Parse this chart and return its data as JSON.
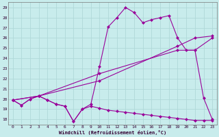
{
  "xlabel": "Windchill (Refroidissement éolien,°C)",
  "bg_color": "#c8ecec",
  "grid_color": "#b0d8d8",
  "line_color": "#990099",
  "xlim": [
    -0.5,
    23.5
  ],
  "ylim": [
    17.5,
    29.5
  ],
  "xticks": [
    0,
    1,
    2,
    3,
    4,
    5,
    6,
    7,
    8,
    9,
    10,
    11,
    12,
    13,
    14,
    15,
    16,
    17,
    18,
    19,
    20,
    21,
    22,
    23
  ],
  "yticks": [
    18,
    19,
    20,
    21,
    22,
    23,
    24,
    25,
    26,
    27,
    28,
    29
  ],
  "line1_x": [
    0,
    1,
    2,
    3,
    4,
    5,
    6,
    7,
    8,
    9,
    10,
    11,
    12,
    13,
    14,
    15,
    16,
    17,
    18,
    19,
    20,
    21,
    22,
    23
  ],
  "line1_y": [
    19.9,
    19.4,
    20.0,
    20.3,
    19.9,
    19.5,
    19.3,
    17.8,
    19.0,
    19.5,
    23.2,
    27.1,
    28.0,
    29.0,
    28.5,
    27.5,
    27.8,
    28.0,
    28.2,
    26.0,
    24.8,
    24.8,
    20.1,
    18.0
  ],
  "line2_x": [
    0,
    1,
    2,
    3,
    4,
    5,
    6,
    7,
    8,
    9,
    10,
    11,
    12,
    13,
    14,
    15,
    16,
    17,
    18,
    19,
    20,
    21,
    22,
    23
  ],
  "line2_y": [
    19.9,
    19.4,
    20.0,
    20.3,
    19.9,
    19.5,
    19.3,
    17.8,
    19.0,
    19.3,
    19.1,
    18.9,
    18.8,
    18.7,
    18.6,
    18.5,
    18.4,
    18.3,
    18.2,
    18.1,
    18.0,
    17.9,
    17.9,
    17.9
  ],
  "line3_x": [
    0,
    3,
    10,
    19,
    21,
    23
  ],
  "line3_y": [
    19.9,
    20.3,
    21.8,
    25.2,
    26.0,
    26.2
  ],
  "line4_x": [
    0,
    3,
    10,
    19,
    21,
    23
  ],
  "line4_y": [
    19.9,
    20.3,
    22.5,
    24.8,
    24.8,
    26.0
  ],
  "markersize": 2.5
}
